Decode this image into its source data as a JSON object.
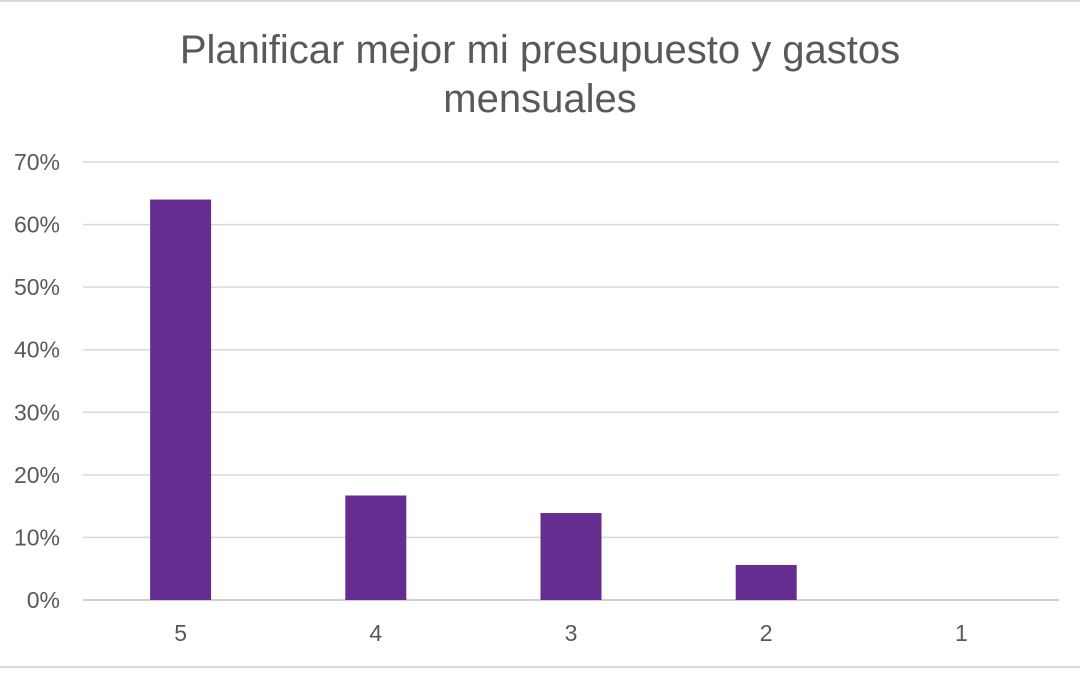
{
  "chart_data": {
    "type": "bar",
    "title_lines": [
      "Planificar mejor mi presupuesto y gastos",
      "mensuales"
    ],
    "categories": [
      "5",
      "4",
      "3",
      "2",
      "1"
    ],
    "values": [
      64,
      16.7,
      13.9,
      5.6,
      0
    ],
    "ylim": [
      0,
      70
    ],
    "yticks": [
      "0%",
      "10%",
      "20%",
      "30%",
      "40%",
      "50%",
      "60%",
      "70%"
    ],
    "ytick_values": [
      0,
      10,
      20,
      30,
      40,
      50,
      60,
      70
    ],
    "grid": true,
    "legend": "none",
    "colors": {
      "bar": "#662d91",
      "grid": "#d9d9d9",
      "axis": "#bfbfbf",
      "text": "#595959"
    }
  }
}
